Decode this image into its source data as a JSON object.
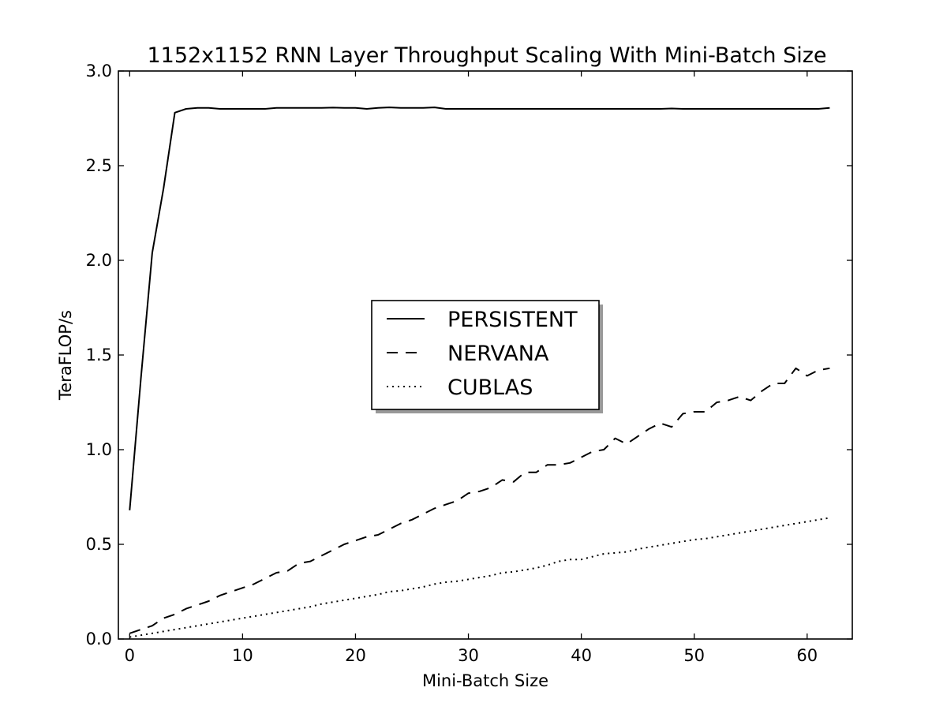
{
  "chart_data": {
    "type": "line",
    "title": "1152x1152 RNN Layer Throughput Scaling With Mini-Batch Size",
    "xlabel": "Mini-Batch Size",
    "ylabel": "TeraFLOP/s",
    "xlim": [
      -1,
      64
    ],
    "ylim": [
      0,
      3.0
    ],
    "xticks": [
      0,
      10,
      20,
      30,
      40,
      50,
      60
    ],
    "yticks": [
      0.0,
      0.5,
      1.0,
      1.5,
      2.0,
      2.5,
      3.0
    ],
    "xtick_labels": [
      "0",
      "10",
      "20",
      "30",
      "40",
      "50",
      "60"
    ],
    "ytick_labels": [
      "0.0",
      "0.5",
      "1.0",
      "1.5",
      "2.0",
      "2.5",
      "3.0"
    ],
    "grid": false,
    "legend_position": "center",
    "x": [
      0,
      1,
      2,
      3,
      4,
      5,
      6,
      7,
      8,
      9,
      10,
      11,
      12,
      13,
      14,
      15,
      16,
      17,
      18,
      19,
      20,
      21,
      22,
      23,
      24,
      25,
      26,
      27,
      28,
      29,
      30,
      31,
      32,
      33,
      34,
      35,
      36,
      37,
      38,
      39,
      40,
      41,
      42,
      43,
      44,
      45,
      46,
      47,
      48,
      49,
      50,
      51,
      52,
      53,
      54,
      55,
      56,
      57,
      58,
      59,
      60,
      61,
      62
    ],
    "series": [
      {
        "name": "PERSISTENT",
        "style": "solid",
        "values": [
          0.68,
          1.38,
          2.04,
          2.38,
          2.78,
          2.8,
          2.805,
          2.805,
          2.8,
          2.8,
          2.8,
          2.8,
          2.8,
          2.805,
          2.805,
          2.805,
          2.805,
          2.805,
          2.807,
          2.805,
          2.805,
          2.8,
          2.805,
          2.808,
          2.805,
          2.805,
          2.805,
          2.808,
          2.8,
          2.8,
          2.8,
          2.8,
          2.8,
          2.8,
          2.8,
          2.8,
          2.8,
          2.8,
          2.8,
          2.8,
          2.8,
          2.8,
          2.8,
          2.8,
          2.8,
          2.8,
          2.8,
          2.8,
          2.802,
          2.8,
          2.8,
          2.8,
          2.8,
          2.8,
          2.8,
          2.8,
          2.8,
          2.8,
          2.8,
          2.8,
          2.8,
          2.8,
          2.805
        ]
      },
      {
        "name": "NERVANA",
        "style": "dashed",
        "values": [
          0.03,
          0.05,
          0.07,
          0.11,
          0.13,
          0.16,
          0.18,
          0.2,
          0.23,
          0.25,
          0.27,
          0.29,
          0.32,
          0.35,
          0.36,
          0.4,
          0.41,
          0.44,
          0.47,
          0.5,
          0.52,
          0.54,
          0.55,
          0.58,
          0.61,
          0.63,
          0.66,
          0.69,
          0.71,
          0.73,
          0.77,
          0.78,
          0.8,
          0.84,
          0.83,
          0.88,
          0.88,
          0.92,
          0.92,
          0.93,
          0.96,
          0.99,
          1.0,
          1.06,
          1.03,
          1.07,
          1.11,
          1.14,
          1.12,
          1.19,
          1.2,
          1.2,
          1.25,
          1.26,
          1.28,
          1.26,
          1.31,
          1.35,
          1.35,
          1.43,
          1.39,
          1.42,
          1.43
        ]
      },
      {
        "name": "CUBLAS",
        "style": "dotted",
        "values": [
          0.01,
          0.02,
          0.03,
          0.04,
          0.05,
          0.06,
          0.07,
          0.08,
          0.09,
          0.1,
          0.11,
          0.12,
          0.13,
          0.14,
          0.15,
          0.16,
          0.17,
          0.185,
          0.195,
          0.205,
          0.215,
          0.225,
          0.235,
          0.25,
          0.255,
          0.265,
          0.275,
          0.29,
          0.3,
          0.305,
          0.315,
          0.325,
          0.335,
          0.35,
          0.355,
          0.365,
          0.375,
          0.39,
          0.41,
          0.42,
          0.42,
          0.435,
          0.45,
          0.455,
          0.46,
          0.475,
          0.485,
          0.495,
          0.505,
          0.515,
          0.525,
          0.53,
          0.54,
          0.55,
          0.56,
          0.57,
          0.58,
          0.59,
          0.6,
          0.61,
          0.62,
          0.63,
          0.64
        ]
      }
    ]
  }
}
